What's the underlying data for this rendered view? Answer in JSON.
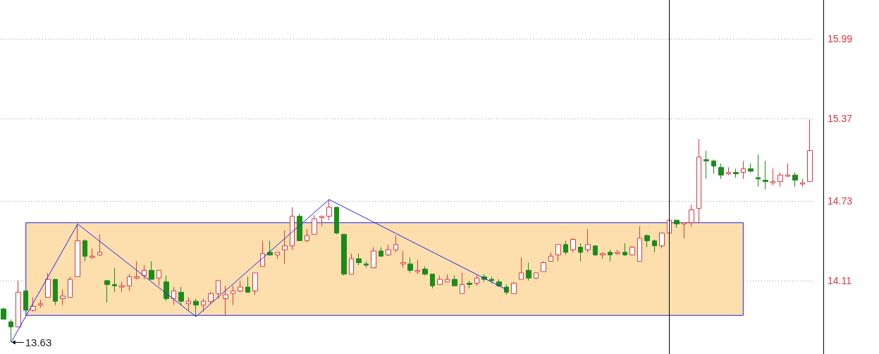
{
  "chart_data": {
    "type": "candlestick",
    "categories": [
      null,
      null,
      null,
      null,
      null,
      null,
      null,
      null,
      null,
      null,
      null,
      null,
      null,
      null,
      null,
      null,
      null,
      null,
      null,
      null,
      null,
      null,
      null,
      null,
      null,
      null,
      null,
      null,
      null,
      null,
      null,
      null,
      null,
      null,
      null,
      null,
      null,
      null,
      null,
      null,
      null,
      null,
      null,
      null,
      null,
      null,
      null,
      null,
      null,
      null,
      null,
      null,
      null,
      null,
      null,
      null,
      null,
      null,
      null,
      null,
      null,
      null,
      null,
      null,
      null,
      null,
      null,
      null,
      null,
      null,
      null,
      null,
      null,
      null,
      null,
      null,
      null,
      null,
      null,
      null,
      null,
      null,
      null,
      null,
      null,
      null,
      null,
      null,
      null,
      null,
      null,
      null,
      null,
      null,
      null,
      null,
      null,
      null,
      null,
      null,
      null,
      null,
      null,
      null,
      null,
      null,
      null,
      null,
      null,
      null
    ],
    "ohlc": [
      [
        13.89,
        13.9,
        13.81,
        13.81
      ],
      [
        13.79,
        13.81,
        13.63,
        13.75
      ],
      [
        13.75,
        14.11,
        13.75,
        14.02
      ],
      [
        14.03,
        14.03,
        13.88,
        13.88
      ],
      [
        13.88,
        13.98,
        13.87,
        13.91
      ],
      [
        13.92,
        13.96,
        13.9,
        13.93
      ],
      [
        13.98,
        14.17,
        13.98,
        14.12
      ],
      [
        14.12,
        14.12,
        13.92,
        13.95
      ],
      [
        13.97,
        14.04,
        13.92,
        13.99
      ],
      [
        13.98,
        14.14,
        13.98,
        14.12
      ],
      [
        14.14,
        14.55,
        14.14,
        14.42
      ],
      [
        14.42,
        14.43,
        14.26,
        14.3
      ],
      [
        14.29,
        14.36,
        14.28,
        14.3
      ],
      [
        14.31,
        14.47,
        14.3,
        14.33
      ],
      [
        14.11,
        14.11,
        13.94,
        14.08
      ],
      [
        14.08,
        14.21,
        14.02,
        14.07
      ],
      [
        14.06,
        14.1,
        14.02,
        14.07
      ],
      [
        14.07,
        14.16,
        14.03,
        14.14
      ],
      [
        14.13,
        14.26,
        14.12,
        14.14
      ],
      [
        14.15,
        14.23,
        14.12,
        14.19
      ],
      [
        14.19,
        14.26,
        14.12,
        14.12
      ],
      [
        14.13,
        14.19,
        14.07,
        14.19
      ],
      [
        14.1,
        14.15,
        13.95,
        13.97
      ],
      [
        13.97,
        14.06,
        13.92,
        14.03
      ],
      [
        14.02,
        14.06,
        13.92,
        13.95
      ],
      [
        13.93,
        13.98,
        13.88,
        13.95
      ],
      [
        13.95,
        13.97,
        13.83,
        13.92
      ],
      [
        13.92,
        13.97,
        13.87,
        13.95
      ],
      [
        13.95,
        14.02,
        13.93,
        14.01
      ],
      [
        14.01,
        14.11,
        13.97,
        14.11
      ],
      [
        13.97,
        14.07,
        13.84,
        14.0
      ],
      [
        14.01,
        14.07,
        13.92,
        14.03
      ],
      [
        14.03,
        14.11,
        14.02,
        14.06
      ],
      [
        14.06,
        14.14,
        14.02,
        14.02
      ],
      [
        14.03,
        14.17,
        14.0,
        14.17
      ],
      [
        14.22,
        14.42,
        14.22,
        14.32
      ],
      [
        14.33,
        14.42,
        14.3,
        14.31
      ],
      [
        14.31,
        14.33,
        14.28,
        14.33
      ],
      [
        14.35,
        14.5,
        14.24,
        14.38
      ],
      [
        14.38,
        14.68,
        14.35,
        14.61
      ],
      [
        14.61,
        14.63,
        14.42,
        14.42
      ],
      [
        14.42,
        14.51,
        14.41,
        14.46
      ],
      [
        14.47,
        14.62,
        14.47,
        14.59
      ],
      [
        14.6,
        14.61,
        14.53,
        14.61
      ],
      [
        14.61,
        14.74,
        14.58,
        14.68
      ],
      [
        14.68,
        14.68,
        14.47,
        14.48
      ],
      [
        14.47,
        14.47,
        14.15,
        14.16
      ],
      [
        14.16,
        14.32,
        14.16,
        14.28
      ],
      [
        14.28,
        14.32,
        14.23,
        14.25
      ],
      [
        14.24,
        14.26,
        14.21,
        14.23
      ],
      [
        14.21,
        14.37,
        14.21,
        14.34
      ],
      [
        14.34,
        14.37,
        14.3,
        14.3
      ],
      [
        14.31,
        14.39,
        14.3,
        14.35
      ],
      [
        14.35,
        14.46,
        14.33,
        14.39
      ],
      [
        14.24,
        14.34,
        14.21,
        14.25
      ],
      [
        14.24,
        14.29,
        14.17,
        14.19
      ],
      [
        14.18,
        14.27,
        14.16,
        14.19
      ],
      [
        14.2,
        14.22,
        14.15,
        14.16
      ],
      [
        14.16,
        14.16,
        14.05,
        14.07
      ],
      [
        14.08,
        14.15,
        14.08,
        14.12
      ],
      [
        14.1,
        14.16,
        14.1,
        14.12
      ],
      [
        14.12,
        14.15,
        14.07,
        14.07
      ],
      [
        14.01,
        14.17,
        14.01,
        14.08
      ],
      [
        14.09,
        14.11,
        14.05,
        14.08
      ],
      [
        14.09,
        14.15,
        14.07,
        14.13
      ],
      [
        14.14,
        14.16,
        14.1,
        14.12
      ],
      [
        14.12,
        14.14,
        14.09,
        14.11
      ],
      [
        14.1,
        14.12,
        14.06,
        14.07
      ],
      [
        14.06,
        14.08,
        14.0,
        14.02
      ],
      [
        14.01,
        14.1,
        14.01,
        14.09
      ],
      [
        14.12,
        14.29,
        14.12,
        14.17
      ],
      [
        14.19,
        14.25,
        14.11,
        14.13
      ],
      [
        14.13,
        14.17,
        14.12,
        14.17
      ],
      [
        14.18,
        14.26,
        14.18,
        14.25
      ],
      [
        14.26,
        14.33,
        14.26,
        14.3
      ],
      [
        14.31,
        14.39,
        14.26,
        14.39
      ],
      [
        14.39,
        14.42,
        14.31,
        14.33
      ],
      [
        14.35,
        14.44,
        14.33,
        14.43
      ],
      [
        14.37,
        14.4,
        14.26,
        14.33
      ],
      [
        14.35,
        14.51,
        14.33,
        14.39
      ],
      [
        14.38,
        14.38,
        14.3,
        14.31
      ],
      [
        14.31,
        14.33,
        14.28,
        14.32
      ],
      [
        14.33,
        14.35,
        14.26,
        14.31
      ],
      [
        14.32,
        14.35,
        14.31,
        14.33
      ],
      [
        14.33,
        14.4,
        14.3,
        14.31
      ],
      [
        14.31,
        14.38,
        14.31,
        14.37
      ],
      [
        14.26,
        14.53,
        14.26,
        14.44
      ],
      [
        14.46,
        14.47,
        14.37,
        14.42
      ],
      [
        14.42,
        14.43,
        14.33,
        14.38
      ],
      [
        14.38,
        14.48,
        14.36,
        14.48
      ],
      [
        14.48,
        14.6,
        14.48,
        14.58
      ],
      [
        14.58,
        14.58,
        14.52,
        14.55
      ],
      [
        14.55,
        14.56,
        14.44,
        14.56
      ],
      [
        14.56,
        14.7,
        14.53,
        14.66
      ],
      [
        14.67,
        15.21,
        14.56,
        15.07
      ],
      [
        15.05,
        15.12,
        14.9,
        15.04
      ],
      [
        15.04,
        15.05,
        14.94,
        15.0
      ],
      [
        14.99,
        15.02,
        14.9,
        14.93
      ],
      [
        14.94,
        14.99,
        14.93,
        14.95
      ],
      [
        14.95,
        14.98,
        14.91,
        14.94
      ],
      [
        14.95,
        15.04,
        14.9,
        14.98
      ],
      [
        14.98,
        15.02,
        14.95,
        14.96
      ],
      [
        14.91,
        15.09,
        14.84,
        14.9
      ],
      [
        14.89,
        15.04,
        14.82,
        14.88
      ],
      [
        14.87,
        14.98,
        14.85,
        14.88
      ],
      [
        14.88,
        14.95,
        14.84,
        14.93
      ],
      [
        14.92,
        15.02,
        14.92,
        14.93
      ],
      [
        14.93,
        14.95,
        14.84,
        14.89
      ],
      [
        14.86,
        14.9,
        14.84,
        14.87
      ],
      [
        14.88,
        15.36,
        14.88,
        15.12
      ]
    ],
    "colors": [
      "#1b8c1b",
      "#1b8c1b",
      "#d9363e",
      "#1b8c1b",
      "#d9363e",
      "#d9363e",
      "#d9363e",
      "#1b8c1b",
      "#d9363e",
      "#d9363e",
      "#d9363e",
      "#1b8c1b",
      "#d9363e",
      "#d9363e",
      "#1b8c1b",
      "#1b8c1b",
      "#d9363e",
      "#d9363e",
      "#d9363e",
      "#d9363e",
      "#1b8c1b",
      "#d9363e",
      "#1b8c1b",
      "#d9363e",
      "#1b8c1b",
      "#d9363e",
      "#1b8c1b",
      "#d9363e",
      "#d9363e",
      "#d9363e",
      "#d9363e",
      "#d9363e",
      "#d9363e",
      "#1b8c1b",
      "#d9363e",
      "#d9363e",
      "#1b8c1b",
      "#d9363e",
      "#d9363e",
      "#d9363e",
      "#1b8c1b",
      "#d9363e",
      "#d9363e",
      "#d9363e",
      "#d9363e",
      "#1b8c1b",
      "#1b8c1b",
      "#d9363e",
      "#1b8c1b",
      "#1b8c1b",
      "#d9363e",
      "#1b8c1b",
      "#d9363e",
      "#d9363e",
      "#d9363e",
      "#1b8c1b",
      "#d9363e",
      "#1b8c1b",
      "#1b8c1b",
      "#d9363e",
      "#d9363e",
      "#1b8c1b",
      "#d9363e",
      "#1b8c1b",
      "#d9363e",
      "#1b8c1b",
      "#1b8c1b",
      "#1b8c1b",
      "#1b8c1b",
      "#d9363e",
      "#d9363e",
      "#1b8c1b",
      "#d9363e",
      "#d9363e",
      "#d9363e",
      "#d9363e",
      "#1b8c1b",
      "#d9363e",
      "#1b8c1b",
      "#d9363e",
      "#1b8c1b",
      "#d9363e",
      "#1b8c1b",
      "#d9363e",
      "#1b8c1b",
      "#d9363e",
      "#d9363e",
      "#1b8c1b",
      "#1b8c1b",
      "#d9363e",
      "#d9363e",
      "#1b8c1b",
      "#d9363e",
      "#d9363e",
      "#d9363e",
      "#1b8c1b",
      "#1b8c1b",
      "#1b8c1b",
      "#d9363e",
      "#1b8c1b",
      "#d9363e",
      "#1b8c1b",
      "#1b8c1b",
      "#1b8c1b",
      "#d9363e",
      "#d9363e",
      "#d9363e",
      "#1b8c1b",
      "#d9363e",
      "#d9363e"
    ],
    "series": [
      {
        "type": "line",
        "color": "#2424f0",
        "values": [
          null,
          13.63,
          null,
          null,
          null,
          null,
          null,
          null,
          null,
          null,
          14.55,
          null,
          null,
          null,
          null,
          null,
          null,
          null,
          null,
          null,
          null,
          null,
          null,
          null,
          null,
          null,
          13.83,
          null,
          null,
          null,
          null,
          null,
          null,
          null,
          null,
          null,
          null,
          null,
          null,
          null,
          null,
          null,
          null,
          null,
          14.74,
          null,
          null,
          null,
          null,
          null,
          null,
          null,
          null,
          null,
          null,
          null,
          null,
          null,
          null,
          null,
          null,
          null,
          null,
          null,
          null,
          null,
          null,
          null,
          14.04,
          null,
          null,
          null,
          null,
          null,
          null,
          null,
          null,
          null,
          null,
          null,
          null,
          null,
          null,
          null,
          null,
          null,
          null,
          null,
          null,
          null,
          null,
          null,
          null,
          null,
          null,
          null,
          null,
          null,
          null,
          null,
          null,
          null,
          null,
          null,
          null,
          null,
          null,
          null,
          null,
          null
        ]
      }
    ],
    "marker": "none",
    "annotations": [
      "13.63"
    ],
    "bands": [
      {
        "axis": "y",
        "from": 13.84,
        "to": 14.56,
        "color": "#fddfae"
      }
    ],
    "ylim": [
      13.54,
      16.29
    ],
    "yticks": [
      14.11,
      14.73,
      15.37,
      15.99
    ],
    "grid": "y",
    "tick_labels": "y"
  }
}
